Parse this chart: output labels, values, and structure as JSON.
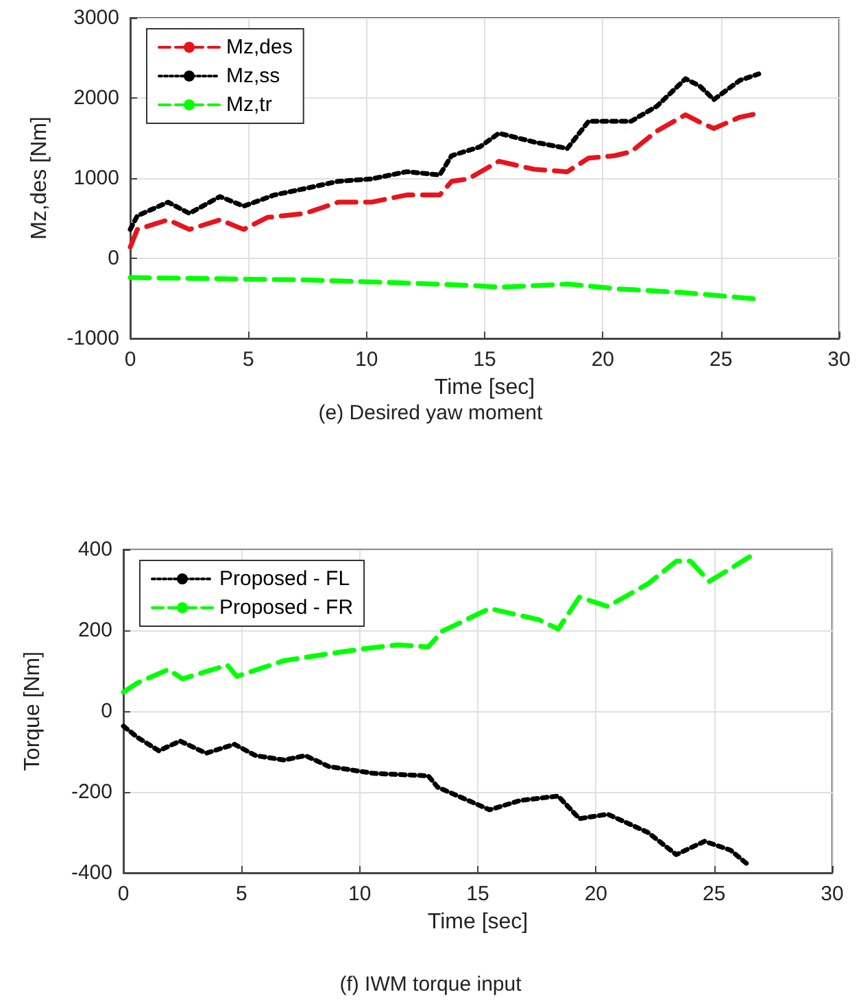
{
  "chart_data": [
    {
      "type": "line",
      "xlabel": "Time [sec]",
      "ylabel": "Mz,des [Nm]",
      "annotations": [
        "(e) Desired yaw moment"
      ],
      "xlim": [
        0,
        30
      ],
      "xticks": [
        0,
        5,
        10,
        15,
        20,
        25,
        30
      ],
      "ylim": [
        -1000,
        3000
      ],
      "yticks": [
        -1000,
        0,
        1000,
        2000,
        3000
      ],
      "grid": true,
      "legend": "top left",
      "marker": "none",
      "series": [
        {
          "name": "Mz,des",
          "color": "#e8141c",
          "line_style": "dashed",
          "x": [
            0,
            0.3,
            1.6,
            2.5,
            3.8,
            4.8,
            5.8,
            7.4,
            8.8,
            10.2,
            11.7,
            13.1,
            13.6,
            14.3,
            15.6,
            17.1,
            18.5,
            19.4,
            20.5,
            21.2,
            22.3,
            23.5,
            24.1,
            24.7,
            25.8,
            26.6
          ],
          "values": [
            140,
            360,
            480,
            360,
            480,
            360,
            510,
            560,
            700,
            700,
            790,
            790,
            960,
            990,
            1210,
            1110,
            1080,
            1250,
            1280,
            1330,
            1590,
            1790,
            1700,
            1620,
            1760,
            1810
          ]
        },
        {
          "name": "Mz,ss",
          "color": "#000000",
          "line_style": "dotted",
          "x": [
            0,
            0.3,
            1.6,
            2.5,
            3.8,
            4.8,
            6.1,
            7.4,
            8.8,
            10.2,
            11.7,
            13.1,
            13.6,
            14.8,
            15.6,
            17.1,
            18.5,
            19.4,
            21.2,
            22.3,
            23.5,
            24.1,
            24.7,
            25.8,
            26.6
          ],
          "values": [
            360,
            530,
            700,
            560,
            770,
            650,
            790,
            870,
            960,
            990,
            1080,
            1040,
            1280,
            1390,
            1560,
            1450,
            1370,
            1710,
            1710,
            1900,
            2240,
            2150,
            1980,
            2220,
            2300
          ]
        },
        {
          "name": "Mz,tr",
          "color": "#00ff00",
          "line_style": "dashed",
          "x": [
            0,
            7.4,
            11.9,
            14.5,
            15.6,
            17.3,
            18.5,
            20.6,
            23.5,
            26.6
          ],
          "values": [
            -240,
            -270,
            -310,
            -340,
            -360,
            -340,
            -320,
            -380,
            -430,
            -510
          ]
        }
      ]
    },
    {
      "type": "line",
      "xlabel": "Time [sec]",
      "ylabel": "Torque [Nm]",
      "annotations": [
        "(f) IWM torque input"
      ],
      "xlim": [
        0,
        30
      ],
      "xticks": [
        0,
        5,
        10,
        15,
        20,
        25,
        30
      ],
      "ylim": [
        -400,
        400
      ],
      "yticks": [
        -400,
        -200,
        0,
        200,
        400
      ],
      "grid": true,
      "legend": "top left",
      "marker": "none",
      "series": [
        {
          "name": "Proposed - FL",
          "color": "#000000",
          "line_style": "dotted",
          "x": [
            0,
            0.6,
            1.5,
            2.4,
            3.5,
            4.7,
            5.6,
            6.8,
            7.7,
            8.7,
            10.6,
            12.9,
            13.3,
            15.5,
            16.8,
            18.4,
            19.3,
            20.5,
            22.2,
            23.4,
            24.6,
            25.7,
            26.5
          ],
          "values": [
            -37,
            -65,
            -98,
            -74,
            -104,
            -82,
            -110,
            -121,
            -110,
            -137,
            -154,
            -160,
            -188,
            -244,
            -221,
            -210,
            -266,
            -255,
            -300,
            -355,
            -322,
            -344,
            -383
          ]
        },
        {
          "name": "Proposed - FR",
          "color": "#00ff00",
          "line_style": "dashed",
          "x": [
            0,
            0.6,
            1.9,
            2.5,
            4.4,
            4.8,
            6.8,
            8.7,
            10.0,
            11.6,
            12.9,
            13.5,
            15.5,
            17.6,
            18.4,
            19.3,
            20.5,
            22.2,
            23.4,
            24.0,
            24.8,
            25.9,
            26.5
          ],
          "values": [
            47,
            70,
            103,
            80,
            114,
            86,
            125,
            142,
            153,
            164,
            159,
            198,
            254,
            226,
            203,
            282,
            259,
            315,
            371,
            371,
            321,
            360,
            382
          ]
        }
      ]
    }
  ]
}
